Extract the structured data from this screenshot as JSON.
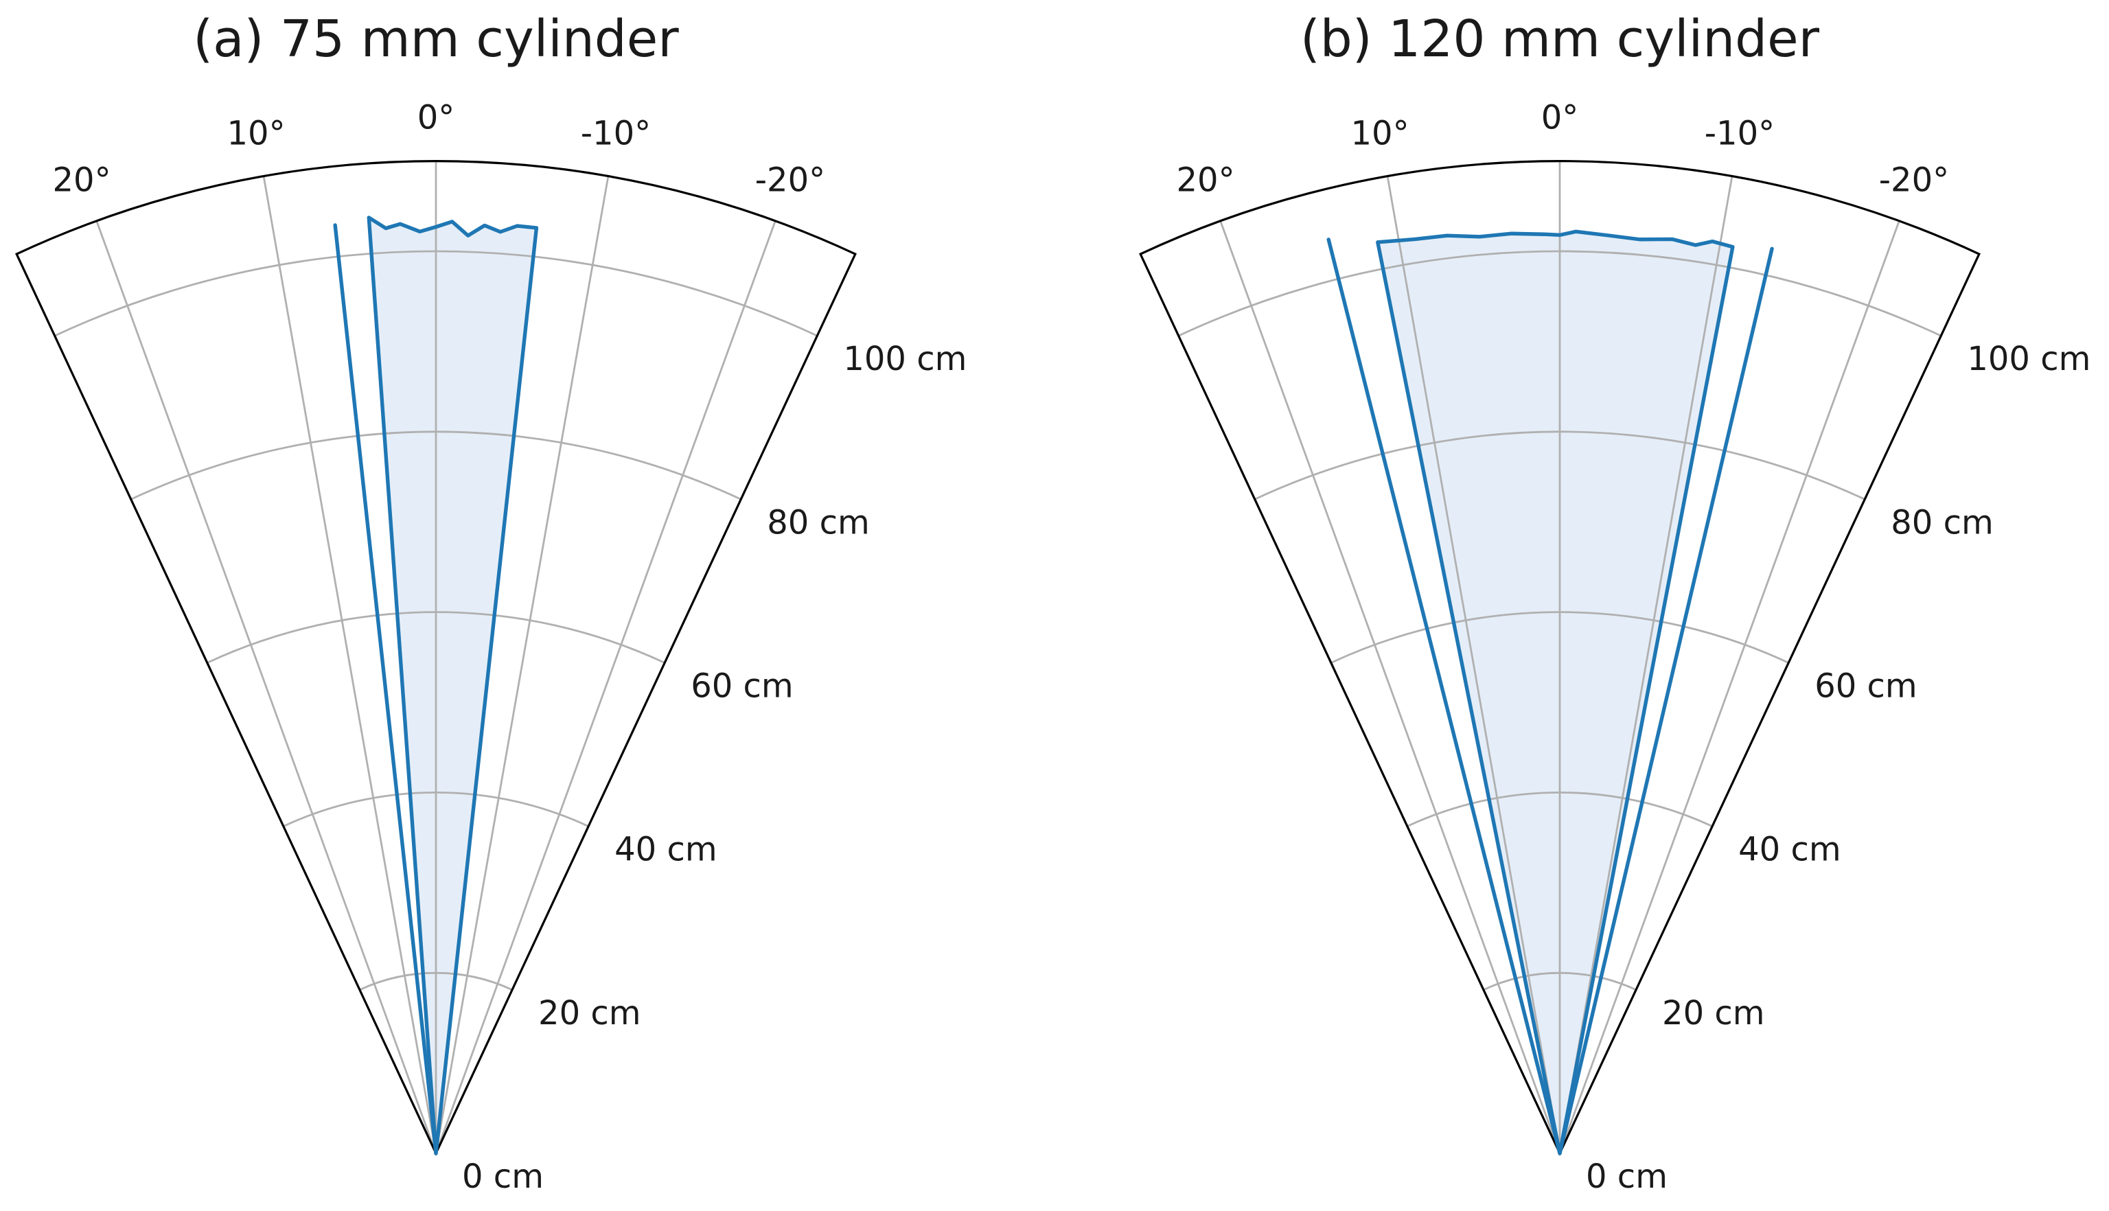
{
  "colors": {
    "series": "#1f77b4",
    "fill": "#e5eef8",
    "grid": "#b0b0b0",
    "frame": "#000000"
  },
  "chart_data": [
    {
      "type": "polar-sector",
      "title": "(a) 75 mm cylinder",
      "theta_range_deg": [
        -25,
        25
      ],
      "r_range_cm": [
        0,
        110
      ],
      "theta_ticks": [
        20,
        10,
        0,
        -10,
        -20
      ],
      "theta_tick_labels": [
        "20°",
        "10°",
        "0°",
        "-10°",
        "-20°"
      ],
      "r_ticks": [
        0,
        20,
        40,
        60,
        80,
        100
      ],
      "r_tick_labels": [
        "0 cm",
        "20 cm",
        "40 cm",
        "60 cm",
        "80 cm",
        "100 cm"
      ],
      "grid": true,
      "beam_region": {
        "r_cm": 102.5,
        "left_edge_deg": 4.1,
        "right_edge_deg": -6.2,
        "end_profile": [
          {
            "theta": 4.1,
            "r": 104.0
          },
          {
            "theta": 3.1,
            "r": 102.7
          },
          {
            "theta": 2.2,
            "r": 103.1
          },
          {
            "theta": 1.0,
            "r": 102.2
          },
          {
            "theta": 0.0,
            "r": 102.7
          },
          {
            "theta": -1.0,
            "r": 103.3
          },
          {
            "theta": -2.0,
            "r": 101.8
          },
          {
            "theta": -3.0,
            "r": 103.0
          },
          {
            "theta": -4.0,
            "r": 102.4
          },
          {
            "theta": -5.0,
            "r": 103.2
          },
          {
            "theta": -6.2,
            "r": 103.2
          }
        ]
      },
      "ray_lines": [
        {
          "theta": 6.2,
          "r": 103.5
        }
      ]
    },
    {
      "type": "polar-sector",
      "title": "(b) 120 mm cylinder",
      "theta_range_deg": [
        -25,
        25
      ],
      "r_range_cm": [
        0,
        110
      ],
      "theta_ticks": [
        20,
        10,
        0,
        -10,
        -20
      ],
      "theta_tick_labels": [
        "20°",
        "10°",
        "0°",
        "-10°",
        "-20°"
      ],
      "r_ticks": [
        0,
        20,
        40,
        60,
        80,
        100
      ],
      "r_tick_labels": [
        "0 cm",
        "20 cm",
        "40 cm",
        "60 cm",
        "80 cm",
        "100 cm"
      ],
      "grid": true,
      "beam_region": {
        "r_cm": 102.0,
        "left_edge_deg": 11.3,
        "right_edge_deg": -10.8,
        "end_profile": [
          {
            "theta": 11.3,
            "r": 103.0
          },
          {
            "theta": 9.0,
            "r": 102.6
          },
          {
            "theta": 7.0,
            "r": 102.5
          },
          {
            "theta": 5.0,
            "r": 102.0
          },
          {
            "theta": 3.0,
            "r": 102.1
          },
          {
            "theta": 1.0,
            "r": 101.9
          },
          {
            "theta": 0.0,
            "r": 101.8
          },
          {
            "theta": -1.0,
            "r": 102.2
          },
          {
            "theta": -3.0,
            "r": 101.9
          },
          {
            "theta": -5.0,
            "r": 101.7
          },
          {
            "theta": -7.0,
            "r": 102.1
          },
          {
            "theta": -8.5,
            "r": 101.8
          },
          {
            "theta": -9.5,
            "r": 102.5
          },
          {
            "theta": -10.8,
            "r": 102.3
          }
        ]
      },
      "ray_lines": [
        {
          "theta": 14.2,
          "r": 104.5
        },
        {
          "theta": -13.2,
          "r": 103.0
        }
      ]
    }
  ]
}
